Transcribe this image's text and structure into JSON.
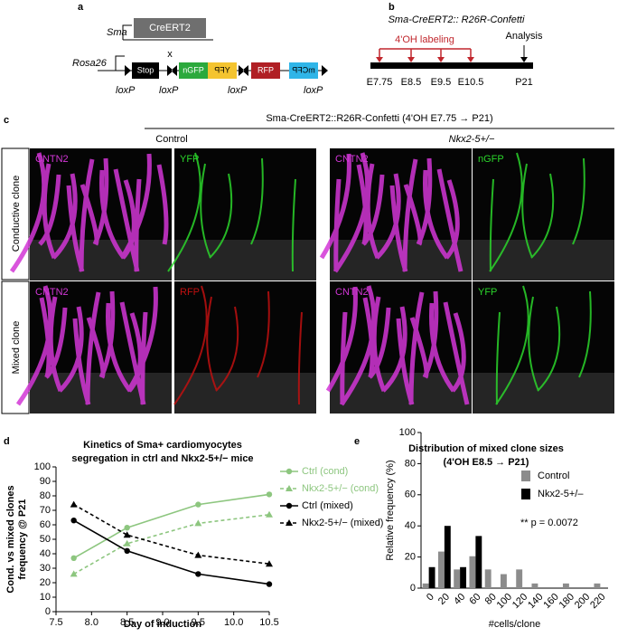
{
  "panel_a": {
    "label": "a",
    "sma": "Sma",
    "creert2": "CreERT2",
    "cross": "x",
    "rosa26": "Rosa26",
    "cassettes": [
      "Stop",
      "nGFP",
      "YFP",
      "RFP",
      "mCFP"
    ],
    "loxp": [
      "loxP",
      "loxP",
      "loxP",
      "loxP"
    ]
  },
  "panel_b": {
    "label": "b",
    "title": "Sma-CreERT2:: R26R-Confetti",
    "labeling": "4'OH labeling",
    "analysis": "Analysis",
    "timepoints": [
      "E7.75",
      "E8.5",
      "E9.5",
      "E10.5",
      "P21"
    ]
  },
  "panel_c": {
    "label": "c",
    "title": "Sma-CreERT2::R26R-Confetti (4'OH E7.75 → P21)",
    "groups": [
      "Control",
      "Nkx2-5+/−"
    ],
    "rows": [
      "Conductive clone",
      "Mixed clone"
    ],
    "image_labels": [
      [
        "CNTN2",
        "YFP",
        "CNTN2",
        "nGFP"
      ],
      [
        "CNTN2",
        "RFP",
        "CNTN2",
        "YFP"
      ]
    ]
  },
  "chart_data": [
    {
      "type": "line",
      "panel_label": "d",
      "title": [
        "Kinetics of Sma+ cardiomyocytes",
        "segregation in ctrl and Nkx2-5+/− mice"
      ],
      "x_label": "Day of induction",
      "y_label": [
        "Cond. vs mixed clones",
        "frequency @ P21"
      ],
      "x": [
        7.75,
        8.5,
        9.5,
        10.5
      ],
      "xlim": [
        7.5,
        10.5
      ],
      "xticks": [
        7.5,
        {
          "value": 8,
          "label": "8.0"
        },
        8.5,
        {
          "value": 9,
          "label": "9.0"
        },
        9.5,
        {
          "value": 10,
          "label": "10.0"
        },
        10.5
      ],
      "ylim": [
        0,
        100
      ],
      "yticks": [
        0,
        10,
        20,
        30,
        40,
        50,
        60,
        70,
        80,
        90,
        100
      ],
      "legend": "right",
      "series": [
        {
          "name": "Ctrl (cond)",
          "color": "#8dc67f",
          "dash": false,
          "marker": "circle",
          "values": [
            37,
            58,
            74,
            81
          ]
        },
        {
          "name": "Nkx2-5+/− (cond)",
          "color": "#8dc67f",
          "dash": true,
          "marker": "triangle",
          "values": [
            26,
            47,
            61,
            67
          ]
        },
        {
          "name": "Ctrl (mixed)",
          "color": "#000000",
          "dash": false,
          "marker": "circle",
          "values": [
            63,
            42,
            26,
            19
          ]
        },
        {
          "name": "Nkx2-5+/− (mixed)",
          "color": "#000000",
          "dash": true,
          "marker": "triangle",
          "values": [
            74,
            53,
            39,
            33
          ]
        }
      ]
    },
    {
      "type": "bar",
      "panel_label": "e",
      "title": [
        "Distribution of mixed clone sizes",
        "(4'OH E8.5 → P21)"
      ],
      "x_label": "#cells/clone",
      "y_label": "Relative frequency (%)",
      "annotation": "** p = 0.0072",
      "categories": [
        "0",
        "20",
        "40",
        "60",
        "80",
        "100",
        "120",
        "140",
        "160",
        "180",
        "200",
        "220"
      ],
      "ylim": [
        0,
        100
      ],
      "yticks": [
        0,
        20,
        40,
        60,
        80,
        100
      ],
      "legend": "right",
      "series": [
        {
          "name": "Control",
          "color": "#8c8c8c",
          "values": [
            3,
            23.5,
            12,
            20.5,
            12,
            9,
            12,
            3,
            0,
            3,
            0,
            3
          ]
        },
        {
          "name": "Nkx2-5+/–",
          "color": "#000000",
          "values": [
            13.5,
            40,
            13.5,
            33.5,
            0,
            0,
            0,
            0,
            0,
            0,
            0,
            0
          ]
        }
      ]
    }
  ]
}
